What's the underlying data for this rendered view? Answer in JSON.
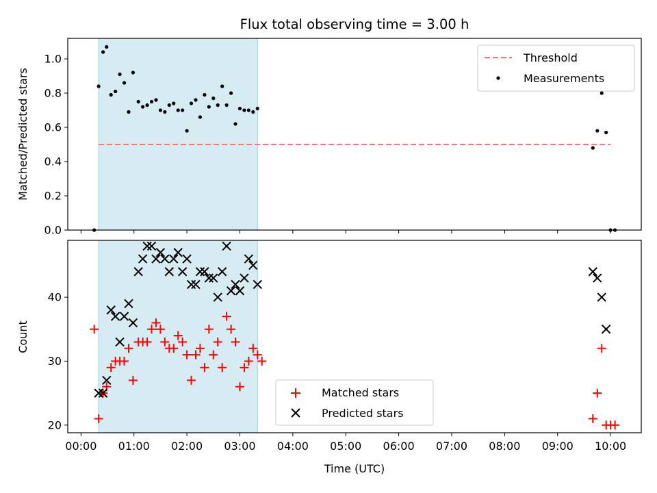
{
  "chart_data": [
    {
      "type": "scatter",
      "title": "Flux total observing time = 3.00 h",
      "ylabel": "Matched/Predicted stars",
      "ylim": [
        0,
        1.12
      ],
      "yticks": [
        "0.0",
        "0.2",
        "0.4",
        "0.6",
        "0.8",
        "1.0"
      ],
      "xlim_hours": [
        -0.25,
        10.58
      ],
      "shaded_interval": {
        "start": "00:20",
        "end": "03:20",
        "color": "#add8e6"
      },
      "threshold": {
        "name": "Threshold",
        "value": 0.5,
        "x_start": "00:20",
        "x_end": "10:00",
        "color": "#ff7070",
        "style": "dashed"
      },
      "legend_position": "upper right",
      "series": [
        {
          "name": "Measurements",
          "color": "#000000",
          "marker": "dot",
          "points": [
            [
              "00:15",
              0.0
            ],
            [
              "00:20",
              0.84
            ],
            [
              "00:25",
              1.04
            ],
            [
              "00:29",
              1.07
            ],
            [
              "00:34",
              0.79
            ],
            [
              "00:39",
              0.81
            ],
            [
              "00:44",
              0.91
            ],
            [
              "00:49",
              0.86
            ],
            [
              "00:54",
              0.69
            ],
            [
              "00:59",
              0.92
            ],
            [
              "01:05",
              0.75
            ],
            [
              "01:10",
              0.72
            ],
            [
              "01:15",
              0.73
            ],
            [
              "01:20",
              0.75
            ],
            [
              "01:25",
              0.76
            ],
            [
              "01:30",
              0.7
            ],
            [
              "01:35",
              0.69
            ],
            [
              "01:40",
              0.73
            ],
            [
              "01:45",
              0.74
            ],
            [
              "01:50",
              0.7
            ],
            [
              "01:55",
              0.7
            ],
            [
              "02:00",
              0.58
            ],
            [
              "02:05",
              0.74
            ],
            [
              "02:10",
              0.76
            ],
            [
              "02:15",
              0.66
            ],
            [
              "02:20",
              0.79
            ],
            [
              "02:25",
              0.72
            ],
            [
              "02:30",
              0.77
            ],
            [
              "02:35",
              0.73
            ],
            [
              "02:40",
              0.84
            ],
            [
              "02:45",
              0.73
            ],
            [
              "02:50",
              0.8
            ],
            [
              "02:55",
              0.62
            ],
            [
              "03:00",
              0.71
            ],
            [
              "03:05",
              0.7
            ],
            [
              "03:10",
              0.7
            ],
            [
              "03:15",
              0.69
            ],
            [
              "03:20",
              0.71
            ],
            [
              "09:40",
              0.48
            ],
            [
              "09:45",
              0.58
            ],
            [
              "09:50",
              0.8
            ],
            [
              "09:55",
              0.57
            ],
            [
              "10:00",
              0.0
            ],
            [
              "10:05",
              0.0
            ]
          ]
        }
      ]
    },
    {
      "type": "scatter",
      "xlabel": "Time (UTC)",
      "ylabel": "Count",
      "ylim": [
        18.8,
        48.9
      ],
      "yticks": [
        "20",
        "30",
        "40"
      ],
      "xlim_hours": [
        -0.25,
        10.58
      ],
      "xticks": [
        "00:00",
        "01:00",
        "02:00",
        "03:00",
        "04:00",
        "05:00",
        "06:00",
        "07:00",
        "08:00",
        "09:00",
        "10:00"
      ],
      "shaded_interval": {
        "start": "00:20",
        "end": "03:20",
        "color": "#add8e6"
      },
      "legend_position": "lower center",
      "series": [
        {
          "name": "Matched stars",
          "color": "#ff0000",
          "marker": "plus",
          "points": [
            [
              "00:15",
              35
            ],
            [
              "00:20",
              21
            ],
            [
              "00:25",
              25
            ],
            [
              "00:29",
              26
            ],
            [
              "00:34",
              29
            ],
            [
              "00:39",
              30
            ],
            [
              "00:44",
              30
            ],
            [
              "00:49",
              30
            ],
            [
              "00:54",
              32
            ],
            [
              "00:59",
              27
            ],
            [
              "01:05",
              33
            ],
            [
              "01:10",
              33
            ],
            [
              "01:15",
              33
            ],
            [
              "01:20",
              35
            ],
            [
              "01:25",
              36
            ],
            [
              "01:30",
              35
            ],
            [
              "01:35",
              33
            ],
            [
              "01:40",
              32
            ],
            [
              "01:45",
              32
            ],
            [
              "01:50",
              34
            ],
            [
              "01:55",
              33
            ],
            [
              "02:00",
              31
            ],
            [
              "02:05",
              27
            ],
            [
              "02:10",
              31
            ],
            [
              "02:15",
              32
            ],
            [
              "02:20",
              29
            ],
            [
              "02:25",
              35
            ],
            [
              "02:30",
              31
            ],
            [
              "02:35",
              33
            ],
            [
              "02:40",
              29
            ],
            [
              "02:45",
              37
            ],
            [
              "02:50",
              35
            ],
            [
              "02:55",
              33
            ],
            [
              "03:00",
              26
            ],
            [
              "03:05",
              29
            ],
            [
              "03:10",
              30
            ],
            [
              "03:15",
              32
            ],
            [
              "03:20",
              31
            ],
            [
              "03:25",
              30
            ],
            [
              "09:40",
              21
            ],
            [
              "09:45",
              25
            ],
            [
              "09:50",
              32
            ],
            [
              "09:55",
              20
            ],
            [
              "10:00",
              20
            ],
            [
              "10:05",
              20
            ]
          ]
        },
        {
          "name": "Predicted stars",
          "color": "#000000",
          "marker": "x",
          "points": [
            [
              "00:20",
              25
            ],
            [
              "00:25",
              25
            ],
            [
              "00:29",
              27
            ],
            [
              "00:34",
              38
            ],
            [
              "00:39",
              37
            ],
            [
              "00:44",
              33
            ],
            [
              "00:49",
              37
            ],
            [
              "00:54",
              39
            ],
            [
              "00:59",
              36
            ],
            [
              "01:05",
              44
            ],
            [
              "01:10",
              46
            ],
            [
              "01:15",
              48
            ],
            [
              "01:20",
              48
            ],
            [
              "01:25",
              46
            ],
            [
              "01:30",
              47
            ],
            [
              "01:35",
              46
            ],
            [
              "01:40",
              44
            ],
            [
              "01:45",
              46
            ],
            [
              "01:50",
              47
            ],
            [
              "01:55",
              44
            ],
            [
              "02:00",
              46
            ],
            [
              "02:05",
              42
            ],
            [
              "02:10",
              42
            ],
            [
              "02:15",
              44
            ],
            [
              "02:20",
              44
            ],
            [
              "02:25",
              43
            ],
            [
              "02:30",
              43
            ],
            [
              "02:35",
              40
            ],
            [
              "02:40",
              44
            ],
            [
              "02:45",
              48
            ],
            [
              "02:50",
              41
            ],
            [
              "02:55",
              42
            ],
            [
              "03:00",
              41
            ],
            [
              "03:05",
              43
            ],
            [
              "03:10",
              46
            ],
            [
              "03:15",
              45
            ],
            [
              "03:20",
              42
            ],
            [
              "09:40",
              44
            ],
            [
              "09:45",
              43
            ],
            [
              "09:50",
              40
            ],
            [
              "09:55",
              35
            ]
          ]
        }
      ]
    }
  ]
}
